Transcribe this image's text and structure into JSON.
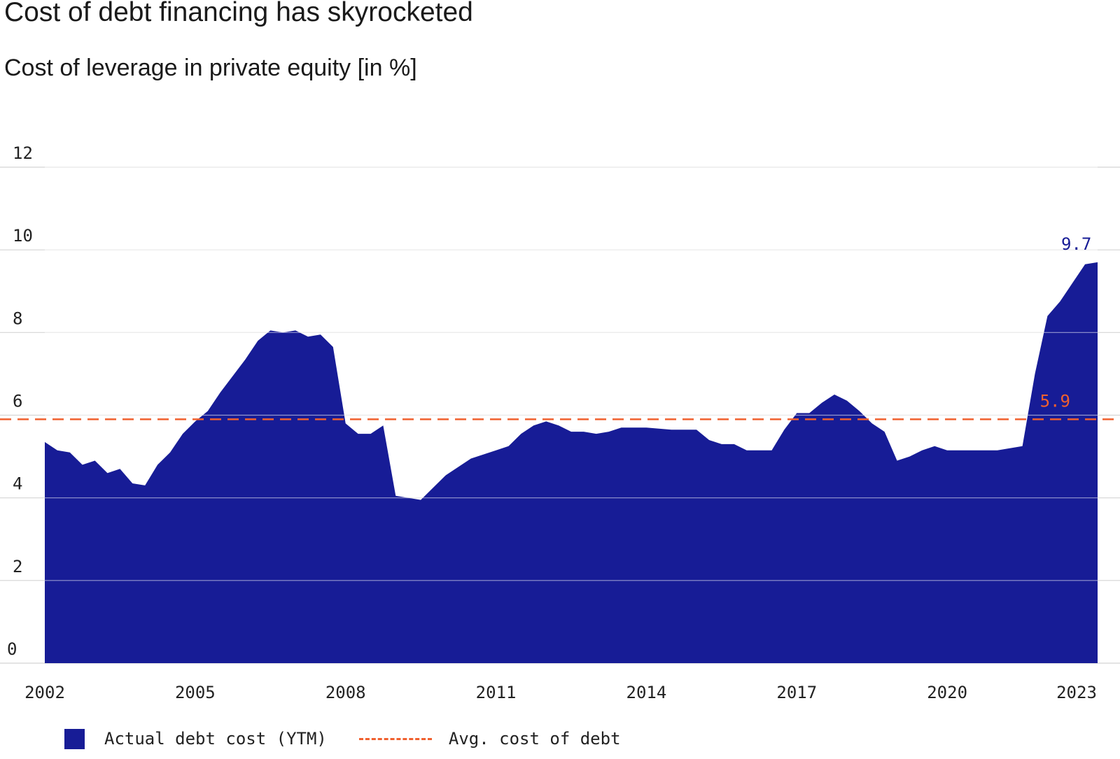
{
  "title": "Cost of debt financing has skyrocketed",
  "subtitle": "Cost of leverage in private equity [in %]",
  "legend": {
    "actual_label": "Actual debt cost (YTM)",
    "avg_label": "Avg. cost of debt"
  },
  "colors": {
    "area": "#171c96",
    "avg": "#f0602e",
    "grid": "#d4d4d4",
    "text": "#222222"
  },
  "chart_data": {
    "type": "area",
    "title": "Cost of debt financing has skyrocketed",
    "subtitle": "Cost of leverage in private equity [in %]",
    "xlabel": "",
    "ylabel": "",
    "xlim": [
      2002,
      2023
    ],
    "ylim": [
      0,
      12
    ],
    "x_ticks": [
      "2002",
      "2005",
      "2008",
      "2011",
      "2014",
      "2017",
      "2020",
      "2023"
    ],
    "y_ticks": [
      "0",
      "2",
      "4",
      "6",
      "8",
      "10",
      "12"
    ],
    "grid": true,
    "legend_position": "bottom-left",
    "series": [
      {
        "name": "Actual debt cost (YTM)",
        "x": [
          2002.0,
          2002.25,
          2002.5,
          2002.75,
          2003.0,
          2003.25,
          2003.5,
          2003.75,
          2004.0,
          2004.25,
          2004.5,
          2004.75,
          2005.0,
          2005.25,
          2005.5,
          2005.75,
          2006.0,
          2006.25,
          2006.5,
          2006.75,
          2007.0,
          2007.25,
          2007.5,
          2007.75,
          2008.0,
          2008.25,
          2008.5,
          2008.75,
          2009.0,
          2009.5,
          2010.0,
          2010.5,
          2010.75,
          2011.0,
          2011.25,
          2011.5,
          2011.75,
          2012.0,
          2012.25,
          2012.5,
          2012.75,
          2013.0,
          2013.25,
          2013.5,
          2013.75,
          2014.0,
          2014.5,
          2015.0,
          2015.25,
          2015.5,
          2015.75,
          2016.0,
          2016.25,
          2016.5,
          2016.75,
          2017.0,
          2017.25,
          2017.5,
          2017.75,
          2018.0,
          2018.25,
          2018.5,
          2018.75,
          2019.0,
          2019.25,
          2019.5,
          2019.75,
          2020.0,
          2020.25,
          2020.5,
          2020.75,
          2021.0,
          2021.5,
          2021.75,
          2022.0,
          2022.25,
          2022.5,
          2022.75,
          2023.0
        ],
        "values": [
          5.35,
          5.15,
          5.1,
          4.8,
          4.9,
          4.6,
          4.7,
          4.35,
          4.3,
          4.8,
          5.1,
          5.55,
          5.85,
          6.1,
          6.55,
          6.95,
          7.35,
          7.8,
          8.05,
          8.0,
          8.05,
          7.9,
          7.95,
          7.65,
          5.8,
          5.55,
          5.55,
          5.75,
          4.05,
          3.95,
          4.55,
          4.95,
          5.05,
          5.15,
          5.25,
          5.55,
          5.75,
          5.85,
          5.75,
          5.6,
          5.6,
          5.55,
          5.6,
          5.7,
          5.7,
          5.7,
          5.65,
          5.65,
          5.4,
          5.3,
          5.3,
          5.15,
          5.15,
          5.15,
          5.65,
          6.05,
          6.05,
          6.3,
          6.5,
          6.35,
          6.1,
          5.8,
          5.6,
          4.9,
          5.0,
          5.15,
          5.25,
          5.15,
          5.15,
          5.15,
          5.15,
          5.15,
          5.25,
          7.0,
          8.4,
          8.75,
          9.2,
          9.65,
          9.7
        ]
      },
      {
        "name": "Avg. cost of debt",
        "type": "hline",
        "value": 5.9
      }
    ],
    "annotations": [
      {
        "text": "9.7",
        "x": 2023.0,
        "y": 9.7,
        "color": "#171c96"
      },
      {
        "text": "5.9",
        "x": 2021.5,
        "y": 5.9,
        "color": "#f0602e"
      }
    ]
  }
}
